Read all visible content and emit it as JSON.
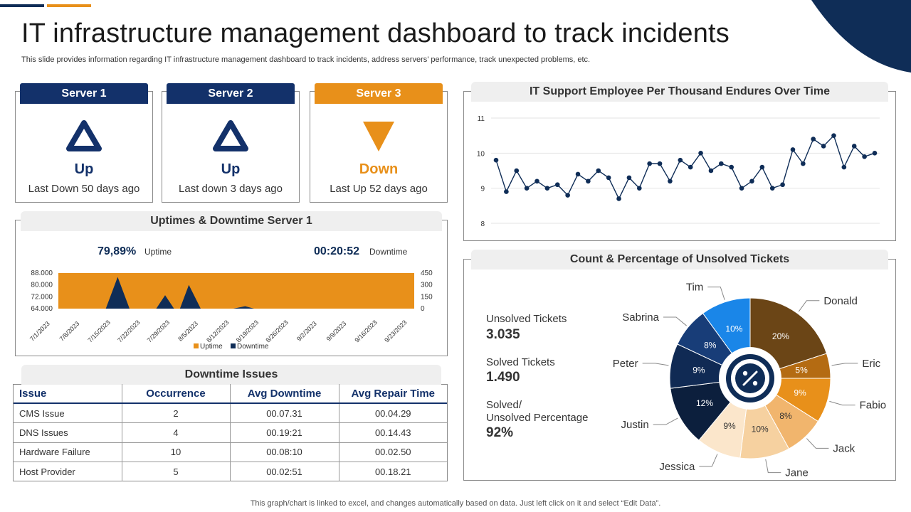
{
  "header": {
    "title": "IT infrastructure management dashboard to track incidents",
    "subtitle": "This slide provides information regarding IT infrastructure management dashboard to track incidents, address servers’ performance, track unexpected problems, etc."
  },
  "footer": "This graph/chart is linked to excel,  and changes automatically based on data. Just left click on it and select “Edit Data”.",
  "colors": {
    "navy": "#0f2d57",
    "orange": "#e8901a",
    "grey_head": "#efefef"
  },
  "servers": [
    {
      "name": "Server 1",
      "status": "Up",
      "note": "Last Down 50 days ago",
      "icon": "triangle-up-icon",
      "color": "#13316a"
    },
    {
      "name": "Server 2",
      "status": "Up",
      "note": "Last down 3 days ago",
      "icon": "triangle-up-icon",
      "color": "#13316a"
    },
    {
      "name": "Server 3",
      "status": "Down",
      "note": "Last Up 52 days ago",
      "icon": "triangle-down-icon",
      "color": "#e8901a"
    }
  ],
  "uptime_panel": {
    "title": "Uptimes & Downtime Server 1",
    "uptime_value": "79,89%",
    "uptime_label": "Uptime",
    "downtime_value": "00:20:52",
    "downtime_label": "Downtime"
  },
  "downtime_table": {
    "title": "Downtime Issues",
    "columns": [
      "Issue",
      "Occurrence",
      "Avg Downtime",
      "Avg Repair Time"
    ],
    "rows": [
      [
        "CMS Issue",
        "2",
        "00.07.31",
        "00.04.29"
      ],
      [
        "DNS Issues",
        "4",
        "00.19:21",
        "00.14.43"
      ],
      [
        "Hardware  Failure",
        "10",
        "00.08:10",
        "00.02.50"
      ],
      [
        "Host Provider",
        "5",
        "00.02:51",
        "00.18.21"
      ]
    ]
  },
  "line_panel": {
    "title": "IT Support Employee Per Thousand Endures Over Time"
  },
  "tickets_panel": {
    "title": "Count  & Percentage of Unsolved Tickets",
    "unsolved_label": "Unsolved Tickets",
    "unsolved_value": "3.035",
    "solved_label": "Solved Tickets",
    "solved_value": "1.490",
    "pct_label_1": "Solved/",
    "pct_label_2": "Unsolved Percentage",
    "pct_value": "92%",
    "center_icon": "percent-icon"
  },
  "chart_data": [
    {
      "type": "area",
      "x_tick_labels": [
        "7/1/2023",
        "7/8/2023",
        "7/15/2023",
        "7/22/2023",
        "7/29/2023",
        "8/5/2023",
        "8/12/2023",
        "8/19/2023",
        "8/26/2023",
        "9/2/2023",
        "9/9/2023",
        "9/16/2023",
        "9/23/2023"
      ],
      "y_left_ticks": [
        "64.000",
        "72.000",
        "80.000",
        "88.000"
      ],
      "y_right_ticks": [
        "0",
        "150",
        "300",
        "450"
      ],
      "ylim_left": [
        64000,
        88000
      ],
      "ylim_right": [
        0,
        450
      ],
      "series": [
        {
          "name": "Uptime",
          "axis": "left",
          "color": "#e8901a",
          "values": [
            88000,
            88000,
            88000,
            88000,
            88000,
            88000,
            88000,
            88000,
            88000,
            88000,
            88000,
            88000,
            88000
          ]
        },
        {
          "name": "Downtime",
          "axis": "right",
          "color": "#0f2d57",
          "points": [
            [
              0,
              0
            ],
            [
              1.6,
              0
            ],
            [
              2,
              400
            ],
            [
              2.4,
              0
            ],
            [
              3.3,
              0
            ],
            [
              3.6,
              170
            ],
            [
              3.9,
              0
            ],
            [
              4.1,
              0
            ],
            [
              4.4,
              300
            ],
            [
              4.8,
              0
            ],
            [
              5.9,
              0
            ],
            [
              6.3,
              30
            ],
            [
              6.6,
              0
            ],
            [
              12,
              0
            ]
          ]
        }
      ],
      "legend": "bottom"
    },
    {
      "type": "line",
      "ylim": [
        8,
        11
      ],
      "y_ticks": [
        "8",
        "9",
        "10",
        "11"
      ],
      "series": [
        {
          "color": "#0f2d57",
          "values": [
            9.8,
            8.9,
            9.5,
            9.0,
            9.2,
            9.0,
            9.1,
            8.8,
            9.4,
            9.2,
            9.5,
            9.3,
            8.7,
            9.3,
            9.0,
            9.7,
            9.7,
            9.2,
            9.8,
            9.6,
            10.0,
            9.5,
            9.7,
            9.6,
            9.0,
            9.2,
            9.6,
            9.0,
            9.1,
            10.1,
            9.7,
            10.4,
            10.2,
            10.5,
            9.6,
            10.2,
            9.9,
            10.0
          ]
        }
      ],
      "grid": true
    },
    {
      "type": "pie",
      "series": [
        {
          "name": "Donald",
          "value": 20,
          "label": "20%",
          "color": "#6b4516"
        },
        {
          "name": "Eric",
          "value": 5,
          "label": "5%",
          "color": "#b46b12"
        },
        {
          "name": "Fabio",
          "value": 9,
          "label": "9%",
          "color": "#e8901a"
        },
        {
          "name": "Jack",
          "value": 8,
          "label": "8%",
          "color": "#f1b56d"
        },
        {
          "name": "Jane",
          "value": 10,
          "label": "10%",
          "color": "#f6d1a0"
        },
        {
          "name": "Jessica",
          "value": 9,
          "label": "9%",
          "color": "#fbe6cb"
        },
        {
          "name": "Justin",
          "value": 12,
          "label": "12%",
          "color": "#0c1f3d"
        },
        {
          "name": "Peter",
          "value": 9,
          "label": "9%",
          "color": "#102a54"
        },
        {
          "name": "Sabrina",
          "value": 8,
          "label": "8%",
          "color": "#183d78"
        },
        {
          "name": "Tim",
          "value": 10,
          "label": "10%",
          "color": "#1a86e8"
        }
      ]
    }
  ]
}
